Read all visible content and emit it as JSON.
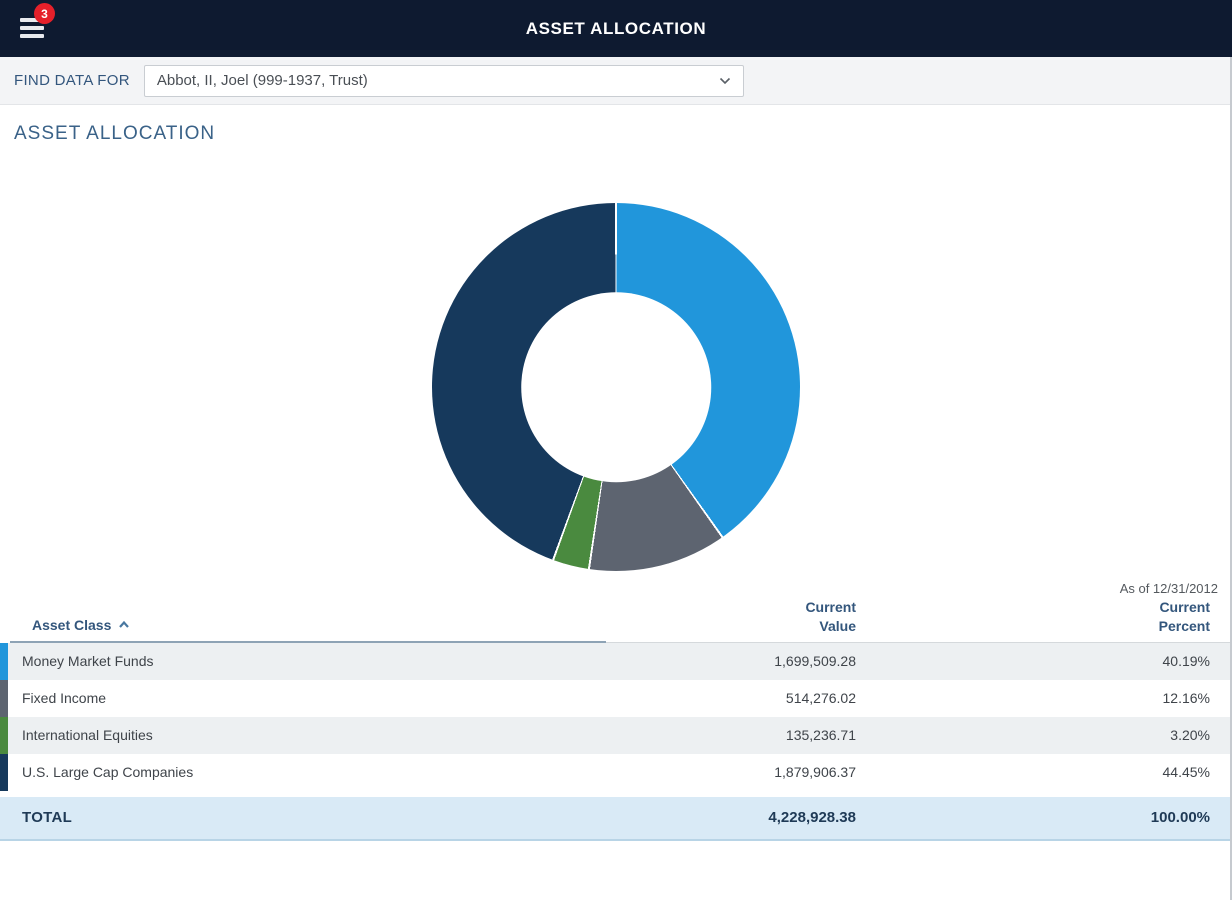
{
  "theme": {
    "appbar_bg": "#0e1a30",
    "badge_red": "#e5202a",
    "page_title_color": "#3a6288",
    "total_row_bg": "#d9eaf6"
  },
  "appbar": {
    "title": "ASSET ALLOCATION",
    "menu_icon": "hamburger-menu-icon",
    "menu_badge_count": "3"
  },
  "find_bar": {
    "label": "FIND DATA FOR",
    "selected_option": "Abbot, II, Joel (999-1937, Trust)",
    "dropdown_icon": "chevron-down-icon"
  },
  "page": {
    "title": "ASSET ALLOCATION",
    "as_of": "As of 12/31/2012"
  },
  "chart_data": {
    "type": "pie",
    "subtype": "donut",
    "title": "Asset Allocation as of 12/31/2012",
    "categories": [
      "Money Market Funds",
      "Fixed Income",
      "International Equities",
      "U.S. Large Cap Companies"
    ],
    "values": [
      40.19,
      12.16,
      3.2,
      44.45
    ],
    "colors": [
      "#2196db",
      "#5d6470",
      "#4a8a3f",
      "#16395c"
    ],
    "start_angle_deg": 0,
    "direction": "clockwise",
    "inner_radius_pct": 51.5,
    "legend": "none",
    "data_labels": "none"
  },
  "table": {
    "columns": [
      {
        "label": "Asset Class",
        "sort": "ascending"
      },
      {
        "label": "Current\nValue"
      },
      {
        "label": "Current\nPercent"
      }
    ],
    "rows": [
      {
        "name": "Money Market Funds",
        "value": "1,699,509.28",
        "percent": "40.19%",
        "color": "#2196db"
      },
      {
        "name": "Fixed Income",
        "value": "514,276.02",
        "percent": "12.16%",
        "color": "#5d6470"
      },
      {
        "name": "International Equities",
        "value": "135,236.71",
        "percent": "3.20%",
        "color": "#4a8a3f"
      },
      {
        "name": "U.S. Large Cap Companies",
        "value": "1,879,906.37",
        "percent": "44.45%",
        "color": "#16395c"
      }
    ],
    "total": {
      "label": "TOTAL",
      "value": "4,228,928.38",
      "percent": "100.00%"
    }
  }
}
